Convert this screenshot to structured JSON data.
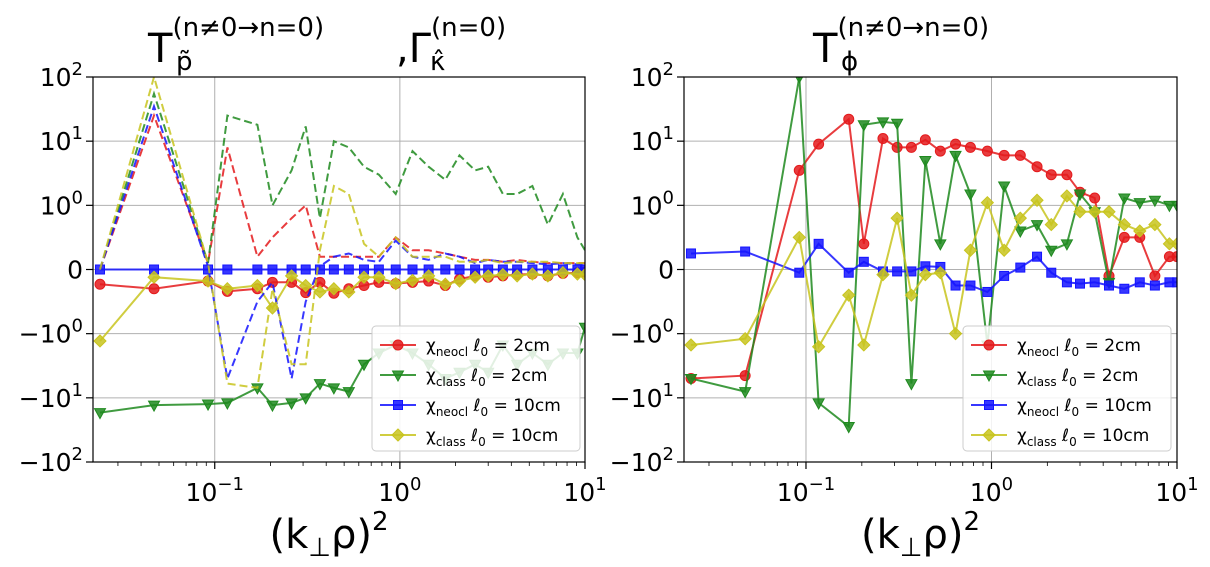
{
  "chart_data": [
    {
      "type": "line",
      "title": {
        "main": "T",
        "sub": "p̃",
        "sup": "(n≠0→n=0)",
        "sep": ",Γ",
        "sub2": "κ̂",
        "sup2": "(n=0)"
      },
      "xlabel": {
        "main": "(k",
        "sub": "⊥",
        "rest": "ρ)",
        "sup": "2"
      },
      "xscale": "log",
      "xlim": [
        0.022,
        10
      ],
      "x_ticks": [
        {
          "base": "10",
          "exp": "−1"
        },
        {
          "base": "10",
          "exp": "0"
        },
        {
          "base": "10",
          "exp": "1"
        }
      ],
      "yscale": "symlog",
      "y_ticks": [
        {
          "base": "10",
          "exp": "2"
        },
        {
          "base": "10",
          "exp": "1"
        },
        {
          "base": "10",
          "exp": "0"
        },
        {
          "base": "0",
          "exp": ""
        },
        {
          "base": "−10",
          "exp": "0"
        },
        {
          "base": "−10",
          "exp": "1"
        },
        {
          "base": "−10",
          "exp": "2"
        }
      ],
      "legend_position": "lower-right",
      "x": [
        0.024,
        0.047,
        0.092,
        0.117,
        0.17,
        0.205,
        0.26,
        0.31,
        0.37,
        0.44,
        0.53,
        0.64,
        0.77,
        0.95,
        1.17,
        1.43,
        1.76,
        2.1,
        2.55,
        3.0,
        3.6,
        4.3,
        5.2,
        6.3,
        7.6,
        9.1,
        10.0
      ],
      "series": [
        {
          "name": "χ_neocl ℓ0 = 2cm",
          "label_main": "χ",
          "label_sub": "neocl",
          "label_rest": " ℓ",
          "label_sub2": "0",
          "label_tail": " = 2cm",
          "color": "#e41a1c",
          "marker": "circle",
          "style": "solid",
          "in_legend": true,
          "values": [
            -0.23,
            -0.3,
            -0.18,
            -0.34,
            -0.3,
            -0.2,
            -0.2,
            -0.36,
            -0.2,
            -0.37,
            -0.3,
            -0.25,
            -0.2,
            -0.22,
            -0.2,
            -0.18,
            -0.25,
            -0.15,
            -0.1,
            -0.12,
            -0.1,
            -0.08,
            -0.07,
            -0.1,
            -0.06,
            -0.05,
            -0.04
          ]
        },
        {
          "name": "χ_class ℓ0 = 2cm",
          "label_main": "χ",
          "label_sub": "class",
          "label_rest": " ℓ",
          "label_sub2": "0",
          "label_tail": " = 2cm",
          "color": "#1f8a1f",
          "marker": "triangle-down",
          "style": "solid",
          "in_legend": true,
          "values": [
            -17,
            -13,
            -12.5,
            -12,
            -7,
            -13,
            -12,
            -10,
            -6,
            -7,
            -8,
            -3,
            -2,
            -1.5,
            -2,
            -3,
            -5,
            -4,
            -3,
            -4,
            -1.5,
            -3,
            -2,
            -3,
            -2,
            -2,
            -0.9
          ]
        },
        {
          "name": "χ_neocl ℓ0 = 10cm",
          "label_main": "χ",
          "label_sub": "neocl",
          "label_rest": " ℓ",
          "label_sub2": "0",
          "label_tail": " = 10cm",
          "color": "#1414ff",
          "marker": "square",
          "style": "solid",
          "in_legend": true,
          "values": [
            0,
            0,
            0,
            0,
            0,
            0,
            0,
            0,
            0,
            0,
            0,
            0,
            0,
            0,
            0,
            0,
            0,
            0,
            0,
            0,
            0,
            0,
            0,
            0,
            0,
            0,
            0
          ]
        },
        {
          "name": "χ_class ℓ0 = 10cm",
          "label_main": "χ",
          "label_sub": "class",
          "label_rest": " ℓ",
          "label_sub2": "0",
          "label_tail": " = 10cm",
          "color": "#c8c41e",
          "marker": "diamond",
          "style": "solid",
          "in_legend": true,
          "values": [
            -1.3,
            -0.12,
            -0.18,
            -0.3,
            -0.25,
            -0.6,
            -0.1,
            -0.25,
            -0.35,
            -0.3,
            -0.35,
            -0.12,
            -0.12,
            -0.22,
            -0.17,
            -0.1,
            -0.23,
            -0.18,
            -0.12,
            -0.1,
            -0.08,
            -0.1,
            -0.07,
            -0.1,
            -0.05,
            -0.07,
            -0.08
          ]
        },
        {
          "name": "red-dashed",
          "color": "#e41a1c",
          "marker": "none",
          "style": "dashed",
          "in_legend": false,
          "values": [
            0,
            25,
            0.1,
            8,
            0.2,
            0.5,
            0.8,
            1.0,
            0.2,
            0.2,
            0.2,
            0.2,
            0.2,
            0.5,
            0.3,
            0.3,
            0.25,
            0.2,
            0.15,
            0.15,
            0.12,
            0.15,
            0.12,
            0.1,
            0.1,
            0.1,
            0.1
          ]
        },
        {
          "name": "green-dashed",
          "color": "#1f8a1f",
          "marker": "none",
          "style": "dashed",
          "in_legend": false,
          "values": [
            0,
            55,
            0.1,
            25,
            18,
            1.0,
            3.5,
            17,
            0.8,
            10,
            8,
            4,
            3,
            1.5,
            7,
            4,
            2.5,
            6,
            3.5,
            4,
            1.5,
            1.5,
            2.0,
            0.7,
            1.5,
            0.5,
            0.3
          ]
        },
        {
          "name": "blue-dashed",
          "color": "#1414ff",
          "marker": "none",
          "style": "dashed",
          "in_legend": false,
          "values": [
            0,
            35,
            0.05,
            -5,
            -0.5,
            -0.2,
            -5,
            -0.5,
            0.05,
            0.2,
            0.25,
            0.15,
            0.12,
            0.45,
            0.2,
            0.15,
            0.25,
            0.2,
            0.1,
            0.15,
            0.12,
            0.12,
            0.1,
            0.08,
            0.1,
            0.08,
            0.08
          ]
        },
        {
          "name": "yellow-dashed",
          "color": "#c8c41e",
          "marker": "none",
          "style": "dashed",
          "in_legend": false,
          "values": [
            0,
            100,
            0.1,
            -6,
            -7,
            -0.3,
            -3,
            -3,
            0.3,
            2.0,
            1.5,
            0.4,
            0.2,
            0.5,
            0.2,
            0.2,
            0.2,
            0.12,
            0.12,
            0.15,
            0.1,
            0.12,
            0.12,
            0.12,
            0.1,
            0.1,
            0.1
          ]
        }
      ]
    },
    {
      "type": "line",
      "title": {
        "main": "T",
        "sub": "ϕ",
        "sup": "(n≠0→n=0)",
        "sep": "",
        "sub2": "",
        "sup2": ""
      },
      "xlabel": {
        "main": "(k",
        "sub": "⊥",
        "rest": "ρ)",
        "sup": "2"
      },
      "xscale": "log",
      "xlim": [
        0.022,
        10
      ],
      "x_ticks": [
        {
          "base": "10",
          "exp": "−1"
        },
        {
          "base": "10",
          "exp": "0"
        },
        {
          "base": "10",
          "exp": "1"
        }
      ],
      "yscale": "symlog",
      "y_ticks": [
        {
          "base": "10",
          "exp": "2"
        },
        {
          "base": "10",
          "exp": "1"
        },
        {
          "base": "10",
          "exp": "0"
        },
        {
          "base": "0",
          "exp": ""
        },
        {
          "base": "−10",
          "exp": "0"
        },
        {
          "base": "−10",
          "exp": "1"
        },
        {
          "base": "−10",
          "exp": "2"
        }
      ],
      "legend_position": "lower-right",
      "x": [
        0.024,
        0.047,
        0.092,
        0.117,
        0.17,
        0.205,
        0.26,
        0.31,
        0.37,
        0.44,
        0.53,
        0.64,
        0.77,
        0.95,
        1.17,
        1.43,
        1.76,
        2.1,
        2.55,
        3.0,
        3.6,
        4.3,
        5.2,
        6.3,
        7.6,
        9.1,
        10.0
      ],
      "series": [
        {
          "name": "χ_neocl ℓ0 = 2cm",
          "label_main": "χ",
          "label_sub": "neocl",
          "label_rest": " ℓ",
          "label_sub2": "0",
          "label_tail": " = 2cm",
          "color": "#e41a1c",
          "marker": "circle",
          "style": "solid",
          "in_legend": true,
          "values": [
            -5,
            -4.5,
            3.5,
            9,
            22,
            0.4,
            11,
            8,
            8,
            10.5,
            7,
            9,
            8,
            7,
            6,
            6,
            4,
            3,
            3,
            1.6,
            1.3,
            -0.1,
            0.5,
            0.5,
            -0.1,
            0.2,
            0.2
          ]
        },
        {
          "name": "χ_class ℓ0 = 2cm",
          "label_main": "χ",
          "label_sub": "class",
          "label_rest": " ℓ",
          "label_sub2": "0",
          "label_tail": " = 2cm",
          "color": "#1f8a1f",
          "marker": "triangle-down",
          "style": "solid",
          "in_legend": true,
          "values": [
            -5,
            -8,
            100,
            -12,
            -28,
            18,
            20,
            19,
            -6,
            5,
            0.4,
            6,
            1.5,
            -1.5,
            2,
            0.6,
            0.7,
            0.3,
            0.4,
            1.5,
            0.9,
            -0.2,
            1.3,
            1.1,
            1.2,
            1.0,
            1.0
          ]
        },
        {
          "name": "χ_neocl ℓ0 = 10cm",
          "label_main": "χ",
          "label_sub": "neocl",
          "label_rest": " ℓ",
          "label_sub2": "0",
          "label_tail": " = 10cm",
          "color": "#1414ff",
          "marker": "square",
          "style": "solid",
          "in_legend": true,
          "values": [
            0.25,
            0.28,
            -0.05,
            0.4,
            -0.05,
            0.12,
            -0.03,
            -0.03,
            -0.03,
            0.05,
            0.04,
            -0.25,
            -0.25,
            -0.35,
            -0.1,
            0.03,
            0.2,
            -0.05,
            -0.2,
            -0.22,
            -0.2,
            -0.25,
            -0.3,
            -0.2,
            -0.25,
            -0.2,
            -0.2
          ]
        },
        {
          "name": "χ_class ℓ0 = 10cm",
          "label_main": "χ",
          "label_sub": "class",
          "label_rest": " ℓ",
          "label_sub2": "0",
          "label_tail": " = 10cm",
          "color": "#c8c41e",
          "marker": "diamond",
          "style": "solid",
          "in_legend": true,
          "values": [
            -1.5,
            -1.2,
            0.5,
            -1.6,
            -0.4,
            -1.5,
            -0.08,
            0.8,
            -0.4,
            -0.08,
            -0.05,
            -1.0,
            0.3,
            1.1,
            0.3,
            0.8,
            1.2,
            0.7,
            1.4,
            0.9,
            0.9,
            0.9,
            0.7,
            0.6,
            0.7,
            0.4,
            0.4
          ]
        }
      ]
    }
  ]
}
